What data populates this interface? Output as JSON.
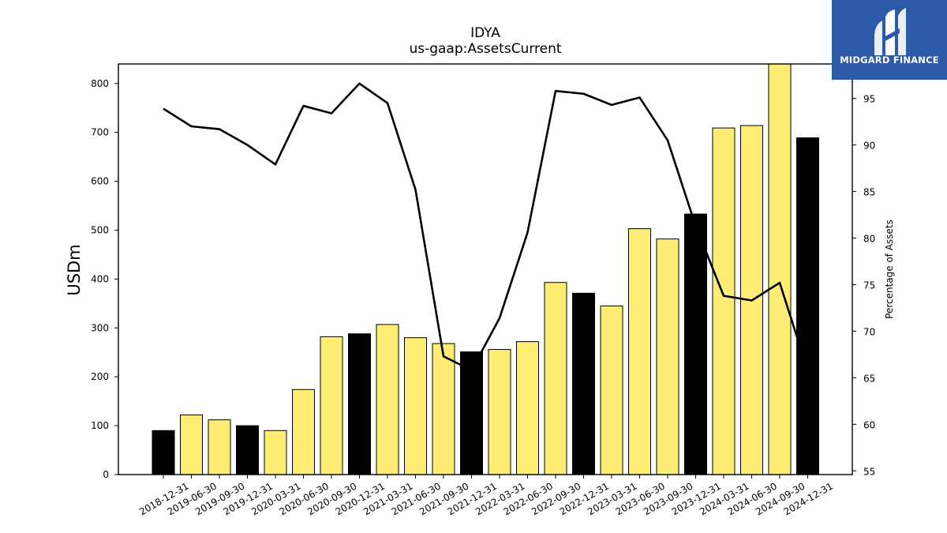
{
  "title": "IDYA",
  "subtitle": "us-gaap:AssetsCurrent",
  "logo": {
    "text": "MIDGARD FINANCE",
    "mark": "midgard-logo-icon",
    "background": "#2d5aa8"
  },
  "colors": {
    "q4_bar": "#000000",
    "other_bar": "#ffec75",
    "line": "#000000",
    "bar_edge": "#000000"
  },
  "chart_data": {
    "type": "bar",
    "categories": [
      "2018-12-31",
      "2019-06-30",
      "2019-09-30",
      "2019-12-31",
      "2020-03-31",
      "2020-06-30",
      "2020-09-30",
      "2020-12-31",
      "2021-03-31",
      "2021-06-30",
      "2021-09-30",
      "2021-12-31",
      "2022-03-31",
      "2022-06-30",
      "2022-09-30",
      "2022-12-31",
      "2023-03-31",
      "2023-06-30",
      "2023-09-30",
      "2023-12-31",
      "2024-03-31",
      "2024-06-30",
      "2024-09-30",
      "2024-12-31"
    ],
    "values": [
      90,
      122,
      112,
      100,
      90,
      174,
      282,
      288,
      307,
      280,
      268,
      251,
      256,
      272,
      393,
      371,
      345,
      503,
      482,
      533,
      709,
      714,
      840,
      689
    ],
    "highlight": [
      true,
      false,
      false,
      true,
      false,
      false,
      false,
      true,
      false,
      false,
      false,
      true,
      false,
      false,
      false,
      true,
      false,
      false,
      false,
      true,
      false,
      false,
      false,
      true
    ],
    "ylabel": "USDm",
    "ylim": [
      0,
      840
    ],
    "yticks": [
      0,
      100,
      200,
      300,
      400,
      500,
      600,
      700,
      800
    ],
    "line": {
      "values": [
        93.9,
        92.0,
        91.7,
        90.0,
        87.9,
        94.2,
        93.4,
        96.6,
        94.5,
        85.2,
        67.3,
        65.8,
        71.4,
        80.6,
        95.8,
        95.5,
        94.3,
        95.1,
        90.5,
        81.3,
        73.8,
        73.3,
        75.2,
        65.8
      ],
      "ylabel": "Percentage of Assets",
      "ylim": [
        54.6,
        98.7
      ],
      "yticks": [
        55,
        60,
        65,
        70,
        75,
        80,
        85,
        90,
        95
      ]
    },
    "grid": false
  }
}
